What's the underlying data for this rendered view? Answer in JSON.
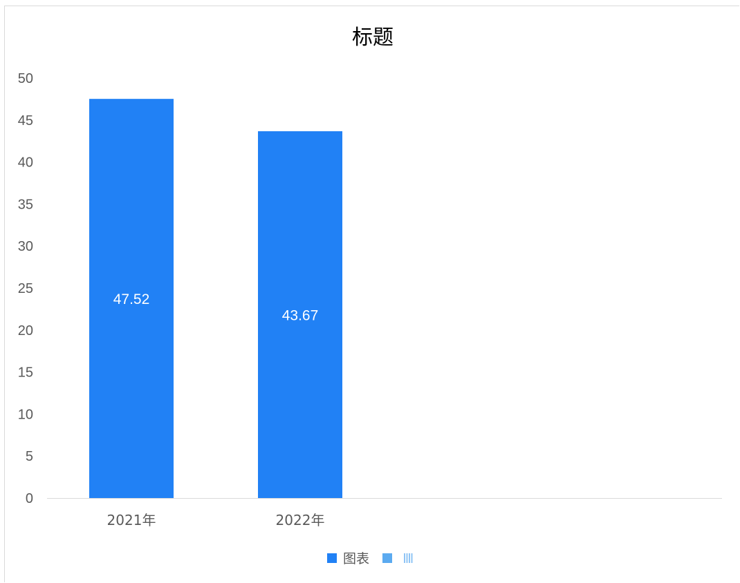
{
  "chart_data": {
    "type": "bar",
    "title": "标题",
    "categories": [
      "2021年",
      "2022年",
      "",
      ""
    ],
    "series": [
      {
        "name": "图表",
        "values": [
          47.52,
          43.67,
          null,
          null
        ],
        "color": "#2181f5"
      },
      {
        "name": "",
        "values": [
          null,
          null,
          null,
          null
        ],
        "color": "#5baaf0"
      },
      {
        "name": "",
        "values": [
          null,
          null,
          null,
          null
        ],
        "color": "#8fc4f5"
      }
    ],
    "ylim": [
      0,
      50
    ],
    "y_ticks": [
      "0",
      "5",
      "10",
      "15",
      "20",
      "25",
      "30",
      "35",
      "40",
      "45",
      "50"
    ],
    "data_labels": [
      "47.52",
      "43.67"
    ],
    "grid": false,
    "legend_position": "bottom"
  }
}
